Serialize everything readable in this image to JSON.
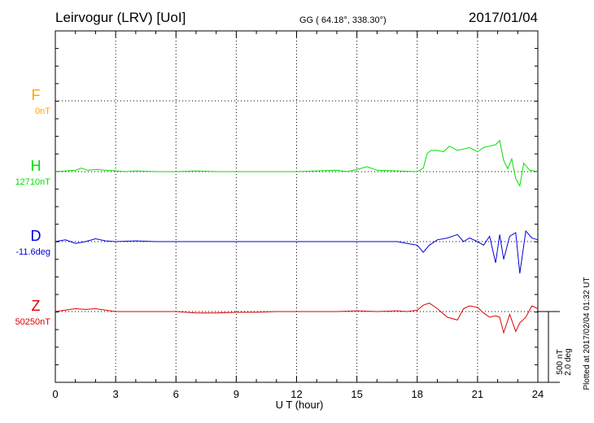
{
  "header": {
    "station": "Leirvogur (LRV)  [UoI]",
    "coords": "GG ( 64.18°, 338.30°)",
    "date": "2017/01/04"
  },
  "footer": {
    "plotted": "Plotted at 2017/02/04 01:32 UT"
  },
  "chart_data": {
    "type": "line",
    "title": "Leirvogur (LRV)  [UoI]",
    "xlabel": "U T (hour)",
    "xlim": [
      0,
      24
    ],
    "xticks": [
      "0",
      "3",
      "6",
      "9",
      "12",
      "15",
      "18",
      "21",
      "24"
    ],
    "grid": true,
    "scale_bar": {
      "nT_label": "500 nT",
      "deg_label": "2.0 deg",
      "nT": 500,
      "deg": 2.0
    },
    "series": [
      {
        "name": "F",
        "baseline": "0nT",
        "color": "#ffa500",
        "values": []
      },
      {
        "name": "H",
        "baseline": "12710nT",
        "color": "#00e000",
        "x": [
          0,
          0.5,
          1,
          1.3,
          1.6,
          2,
          2.5,
          3,
          3.5,
          4,
          5,
          6,
          7,
          8,
          9,
          10,
          11,
          12,
          13,
          14,
          14.5,
          15,
          15.5,
          16,
          17,
          18,
          18.3,
          18.5,
          18.7,
          19,
          19.3,
          19.6,
          20,
          20.3,
          20.6,
          21,
          21.3,
          21.6,
          21.9,
          22.1,
          22.3,
          22.5,
          22.7,
          22.9,
          23.1,
          23.3,
          23.6,
          24
        ],
        "values": [
          0,
          5,
          10,
          25,
          10,
          15,
          10,
          5,
          0,
          5,
          0,
          0,
          5,
          0,
          0,
          0,
          0,
          0,
          5,
          10,
          0,
          15,
          35,
          10,
          5,
          0,
          25,
          130,
          150,
          150,
          140,
          180,
          150,
          160,
          170,
          140,
          170,
          180,
          190,
          220,
          80,
          20,
          90,
          -50,
          -100,
          60,
          10,
          0
        ]
      },
      {
        "name": "D",
        "baseline": "-11.6deg",
        "color": "#0000dd",
        "x": [
          0,
          0.5,
          1,
          1.5,
          2,
          2.5,
          3,
          4,
          5,
          6,
          7,
          8,
          9,
          10,
          11,
          12,
          13,
          14,
          15,
          16,
          17,
          17.5,
          18,
          18.3,
          18.6,
          19,
          19.5,
          20,
          20.3,
          20.6,
          21,
          21.3,
          21.6,
          21.9,
          22.1,
          22.3,
          22.6,
          22.9,
          23.1,
          23.4,
          23.7,
          24
        ],
        "values": [
          0,
          0.05,
          -0.05,
          0,
          0.08,
          0.02,
          0,
          0.02,
          0,
          0,
          0,
          0,
          0,
          0,
          0,
          0,
          0,
          0,
          0,
          0,
          0,
          -0.05,
          -0.1,
          -0.3,
          -0.1,
          0.05,
          0.1,
          0.2,
          0.0,
          0.1,
          0.0,
          -0.1,
          0.15,
          -0.6,
          0.2,
          -0.5,
          0.15,
          0.25,
          -0.9,
          0.3,
          0.1,
          0.05
        ]
      },
      {
        "name": "Z",
        "baseline": "50250nT",
        "color": "#dd0000",
        "x": [
          0,
          0.5,
          1,
          1.5,
          2,
          2.5,
          3,
          4,
          5,
          6,
          7,
          8,
          9,
          10,
          11,
          12,
          13,
          14,
          15,
          16,
          17,
          17.5,
          18,
          18.3,
          18.6,
          19,
          19.5,
          20,
          20.3,
          20.6,
          21,
          21.3,
          21.6,
          21.9,
          22.1,
          22.3,
          22.6,
          22.9,
          23.1,
          23.4,
          23.7,
          24
        ],
        "values": [
          0,
          10,
          20,
          15,
          20,
          10,
          0,
          0,
          0,
          0,
          -10,
          -10,
          -5,
          -5,
          0,
          0,
          0,
          0,
          5,
          0,
          5,
          0,
          10,
          45,
          60,
          20,
          -40,
          -60,
          20,
          40,
          30,
          -10,
          -40,
          -30,
          -40,
          -150,
          -20,
          -140,
          -80,
          -40,
          40,
          20
        ]
      }
    ]
  }
}
